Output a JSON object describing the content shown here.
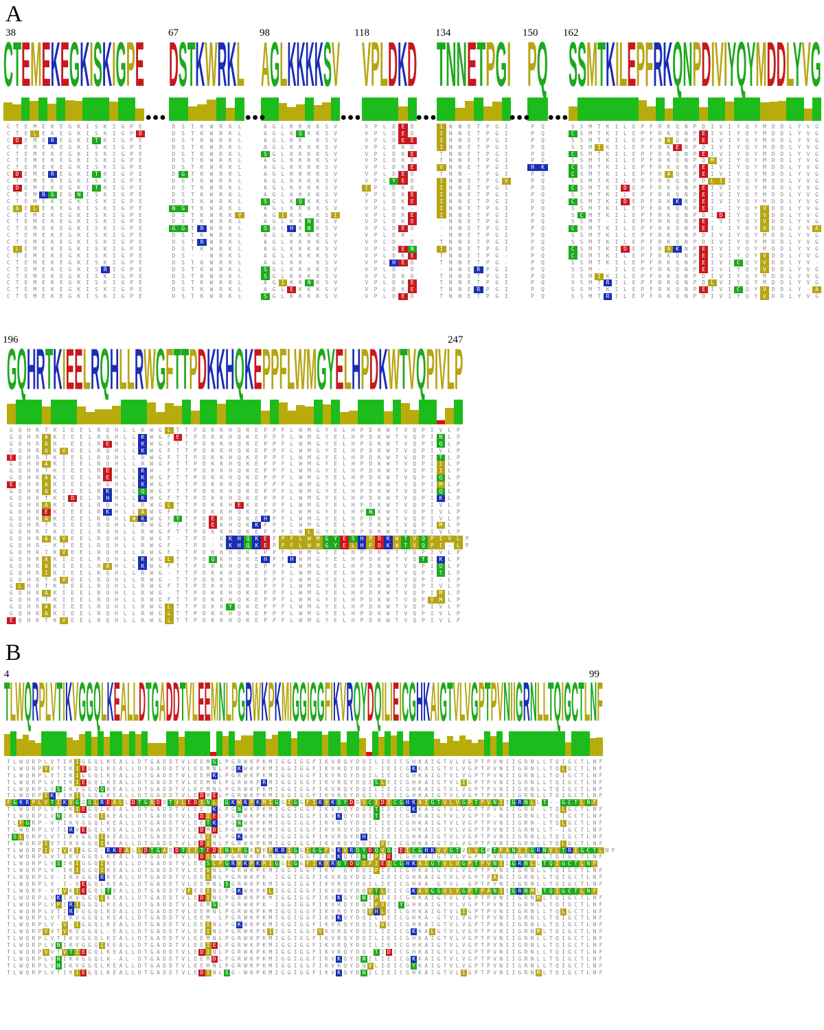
{
  "panels": [
    {
      "letter": "A"
    },
    {
      "letter": "B"
    }
  ],
  "panelA": {
    "blocks": [
      {
        "start": "38",
        "consensus": "CTEMEKEGKISKIGPE"
      },
      {
        "start": "67",
        "consensus": "DSTKWRKL"
      },
      {
        "start": "98",
        "consensus": "AGLKKKKSV"
      },
      {
        "start": "118",
        "consensus": "VPLDKD"
      },
      {
        "start": "134",
        "consensus": "TNNETPGI"
      },
      {
        "start": "150",
        "consensus": "PQ"
      },
      {
        "start": "162",
        "consensus": "SSMTKILEPFRKQNPDIVIYQYMDDLYVG"
      }
    ],
    "row2": {
      "start": "196",
      "end": "247",
      "consensus": "GQHRTKIEELRQHLLRWGFTTPDKKHQKEPPFLWMGYELHPDKWTVQPIVLP"
    },
    "ellipsis": "•••",
    "alignment_rows": [
      "CTEMEKEGKISKIGPE DSTKWRKL AGLKKKKSV VPLDED INNETPGI PQ SSMTKILEPFRKQNPDIVIYQYMDDLYVG",
      "CTELEKEGKISKIGPD DSTKWRKL AGLKQKKSV VPLDED INNETPGI PQ CSMTKILEPFRKQNPEIVIYQYMDDLYVG",
      "CDEMEREGKITKIGPE DSTKWRKL AGLKK-KSV VPLDEE INNETPGI PQ SSMTKILEPFRAQNPEIVIYQYMDDLYVG",
      "CTEMEKEGKISKIGPE DSTKWRKL AGLKKKKSV VPLDKD INNETPGI PQ SSMIKILEPFRKENPDIVIYQYMDDLYVG",
      "CTEMEKEGKISKIGPE DSTKWRKL SGLKKKKSV VPLDKE TNNETPGI PQ CSMTKILEPFRKQNPEIVIYQYMDDLYVG",
      "CTEMEKEGKISKIGPE DSTKWRKL AGLKKKKSV VPLDKD TNNETPGI PQ SSMTKILEPFRKQNPDMVIYQYMDDLYVG",
      "CTEMEKEGKISKIGPE DSTKWRKL AGLKKKKSV VPLDKE VNNETPGI HK CSMTKILEPFRKQNPEIVIYQYMDDLYVG",
      "CDEMEREGKITKIGPE DGTKWRKL AGLKKKKSV VPLDED TNN-TPGI PQ CSMTKILEPFRAQNPEIVIYQYMDDLYVG",
      "CTEMEKEGKISKIGPE DSTKWRKL AGLKKKKSV VPLYED INNETPGV PQ SSMTKILEPFRKQNPDLIIYQYMDDLYVG",
      "CDEMEKEGKITKIGPE DSTKWRKL AGLKKKKSV IPLDKD INNETPGI PQ CSMTKIDEPFRKQNPEIVIYQYMDDLYVG",
      "CTEMRGEGNISKIGPE DSTKWRKL AGLKKKKSV VPLDKE INNETPGI PQ SSMTKILEPFRKQNPEIVIYQYMDDLYVG",
      "CTEMEKEGKISKIGPE DSTKWRKL SGLKQKKSV VPLDKE INNETPGI PQ CSMTKIDEPFRKKNPEIVIYQYMDDLYVG",
      "CAELEKEGKISKIGPE NGTKWRKL AGLKKKKSV VPLDK- INNETPGI PQ SSMTKILEPFRKQNPEI-IYQYVDDLYVG",
      "CTEMEKEGKISKIGPE DSTKWRKV AGIKK-KSI VPLDKE INNETPGI PQ SCMTKILEPFRKQNPDIDIYQYVDDLYVG",
      "CTEMEKEGKISKIGPE DSTKWRKL AGLKKNKSV VPLDKE -NNETPGI PQ SSMT-ILEPFRKQNPE-VIYQYVDDLYVG",
      "CTEMEKEGKISKIGPE GGTRWRKL SGLHKNKSV VPLDED -NNETPGI PQ CSMTKILEPFRKQNPEI-IYQYVDDLYVA",
      "CTEMEKEGKISKIGPE DSTKWRKL AGLKKKKSV VPLDK- -NNETPGI PQ SSMTKILEPFRKQNPDIVIYQYMDDLYVG",
      "CTEMEKEGKISKIGPE DSTRWRKL AGLKKKKSV VPLD-D TNNETPGI PQ SSMTKILEPFRKQNPDIVIYQYMDDLYVG",
      "CLEMEKEGKISKIGPE DSTKWRKL AGLKKKKSV VPLDEN INNETPGI PQ CSMTKIDEPFRAKNPEIVIYQYMDDLYVG",
      "CTEMEKEGKISKIGPE DS--WRKL AGLKKKKSV VPLDKE TNNETPG- PQ CSMTKILEPFRKQNPEIVIYQYVDDLYVG",
      "CTEMEKEGKISKIGPE DSTKWRKL AGLKK-KSV VPLHED TNNETPG- PQ SSMTKILEPFRKQNPEIVICQYVDDLYV-",
      "CTEMEKEGKISRIGPE DSTKWRKL SGLKKKKSV VPLD-D -NNERPGI PQ SSM--ILEPFRKQNPEIVIYQYVDDLYVG",
      "CTEMEKEGKISKIGPE DSTKWRKL SGLKKKKSV VPLDKD TNNETPGI PQ SSMIKILEPFRKQNPDIVIYQYMDDLYVG",
      "CTEMEKEGKISKIGPE DSTKWRKL AGIKKNKSV VPLDKE TNNETPGI PQ SSMTRILEPFRKQNPDLVIYQYMDDLYVG",
      "CTEMEKEGKISKIGPE DSTKWRKL AGLEKKKSV VPLDKE TNNERPGI PQ SSMTKILEPFRKQNPEIVICQYVDDLY-A",
      "CTEMEKEGKISKIGPE DSTKWRKL SGLKKKKSV VPLDED TNNETPGI PQ SSMTRILEPFRKQNPDIVIYQYVDDLYVG"
    ]
  },
  "panelB": {
    "start": "4",
    "end": "99",
    "consensus": "TLWQRPLVTIKVGGQLKEALLDTGADDTVLEEMNLPGRWKPKMIGGIGGFIKVRQYDQILIEICGHKAIGTVLVGPTPVNIIGRNLLTQIGCTLNF",
    "alignment_rows": [
      "TLWQRPLVTIKIGGQLKEALLDTGADDTVLEEMSLPGRWKPKMIGGIGGFIKVRQYDQILIEICGHKAIGTVLVGPTPVNIIGRNLLTQIGCTLNF",
      "TLWQRPVVTIKIEGQLKEALLDTGADDTVLEEMNLPGKWKPKMIGGIGGFIKVRQYDQI-IEICGKKAIGTVLVGPTPVNIIGRNLLTQLGCTLNF",
      "TLWQRPLVTIKIGGQLKEALLDTGADDTVLEEMKLPGRWKPKMIGGIGGFIKVRQYDQILIEICGHKAIGTVLVGPTPVNIIGRNLLTQIGCTLNF",
      "TLWQRPLVTIKIEGQLKEALLDTGADDTVLEEMNLPGRWKPRMIGGIGGFIKVRQYDQISLEICGHKAIGTVLIGPTPVNIIGRNLLTQIGCTLNF",
      "TLWQRPLVSIKVGGQQKEALLDTGADDTVLEEMNLPGRWKPKMIGGIGGFIKVRQYDQILIEICGHKAIGTVLVGPTPVNIIGRNLLTQIGCTLNF",
      "TLWQRPIKTIKIGGQLKEALLDTGADDTVLEDMELPGRWKPKMIGGIGGFIKVRQYDQILIEICGHKAIGTVLVGPTPVNIIGRNLLTQIGCTLNF",
      "FGKRPLVTIKVGGQLREALLDTGADDTVLEDINL-GKWKPKMIGGIGGFIKVKQYDDVCIDICGHKAIGTVLVGPTPVNIIGRNLLT--GCTLNF",
      "TLWQRPLVTIKIEGQLKEALLDTGADDTVLEE-KLPGNWKPKMIGGIGGFIKVRQYDQITIEICGKKAIGTVLVGPTPVNIIGRN-LTQLGCTLNF",
      "TLWQRPLVNIKVGGQIKEALLDTGADDTVLEDIELPGRWKPKMIGGIGGFIKVKQYDQITIEICGHKAIGTVLVGPTP-NIIGRNLLTQIGCTLNF",
      "TLFGRP-VTIKVGGQLKEALLDTGADDTVLEETKLPGNWKPKMIGGIGGFIKVRQYDQILIEICGHKAIGTVLVGPTPVNIIGRN-LTQLGCTLNF",
      "TLWQRPLVTIRVEGQLKEALLDTGADDTVLEDMDLPGRWKPKMIGGIGGFIKVRQYDQILIEICGHKAIGTVLVGPTPVNIIGRNLLT-IGCTLNF",
      "TSLQRPLVTIKVGGQIKEALLDTGADDTVLEEINLPGKWKPKMIGGIGGFIKVRQYDHILIEICGHKAIGTVLVGPTPVNIIGRNLLTQIGCTLNF",
      "TLWQRPIVTIKVGGQIKEALLDTGADDTVLEDINLPGRWKPKMIGGIGGFIKVRQYDQILVEICGHKAIGTVLVGPTPVNIIGRNLLTQLGCTLNF",
      "TLWQRPIVTVKIGGQ-RKEALLDTGADDTIITEDINLPGKWKPKRIGGIGGFVKVRQYDQVQIEICGHKVVGTVLVGPTPANIIGRNVLTRIGCTLNF",
      "TLWQRPLVTIKVGGQLKEALLDTGADDTVLEDINLPGRWKPKMIGGIGGFIKVKQYDNIPIDICGHKAIGTVLVGPTPVNIIGRNLLTQIGCTLNF",
      "TLWQRPLVSIKIGGQIKEALLDTGADDTVLEESLPGRWKPKMIGGIGGFIKVRQYDQIPIEICGHKAIGTVLVGPTPVNIIGRNLLTQIGCTLNF",
      "TLWQRPLV-IKIGGQIKEALLDTGADDTVLEEVNLPGRWKPKMIGGIGGFIKV-QYDQIPIEICGHKAIGTVLVGPTPVNIIGRNLLTQIGCTLNF",
      "TLWQRPLV-IKVGGQRKEALLDTGADDTVLEEINLPGRWKPK-IGGIGGFIKVRQYDQI-IEICGHKAIGTVLVGPTPANIIGRNLLTQIGCTLNF",
      "TLWQRPLV-I-VEGQLKEALLDTGADDTVLEEMNLSGRWKPKMIGGIGGFIKVRQYDQILIEICGHKA-GTVL-GPTPVNIIGRNLLTQIGCTLNF",
      "TLWQRP-VTVKIEGQLTEALLDTGADDTVFEEINLPGKWKPKLIGGIGGFIKVRQYDQVTLEICGKAVGSVLVGPTPANIIGRNMLTQIGCTLNF",
      "TLWQRPLVKIKVGGQIKEALLDTGADDTVLEDINLPGRWKPKMIGGIGGFIKVKQYDNIPIEICGHKAIGTVLVGPTPVNIIGRNMLTQIGCTLNF",
      "TLWQRPLVPIRIGGQLKEALLDTGADDTVLEEMSLPGRWKPK-IGGIGGFIKVRQYDQIPVEIYGHKAIGTVLVGPTPVNIIGRNLLTQIGCTLNF",
      "TLWQRPLVTIRVGGQLKEALLDTGADDTVLEEMNLPGRWKPKMIGGIGGFIKVRQYDQVHLEICGHKAIGTVLIGPTPVNIIGRNLLTQLGCTLNF",
      "TLWQRPLVTIKVGGQLKEALLDTGADDTVLEEM-LPGRWKPKMIGGIGGFIKVKQYDQILIEICGHKA-GTVLVGPTPVNIIGRNLLTQIGCTLNF",
      "TLWQRPLV-V-IGGQLKEALLDTGADDTVLEEINLPGKWKPKMIGGIGGFIKVRQYDQILVEICGHKAIGTVLVGPTPVNIIGRNLLTQIGCTLNF",
      "TLWQRPVVTVKVGGQL-EALLDTGADDTVLEEINLPGRWKPKIIGGIGGFVKVRQYDQILIEICGKKALGTVLVGPTPVNIIGRNMLTQIGCTLNF",
      "TLWQRPLVTIKVGGQLKEALLDTGADDTVLEEMNLPGRWKPKMIGGIGGFIKVRQYDQILIEICGHKAIGTVLVGPTPVNIIGRNLLTQIGCTLNF",
      "TLWQRPLVNIKVGGQIKEALLDTGADDTVLEEIELPGRWKPKMIGGIGGFIKVRQYDQILIEICGHKAIGTVLVGPTPVNIIGRNLLTQIGCTLNF",
      "TLWQRPVVTVTIEGQLKEALLDTGADDTVLEDINLPGRWKPKMIGGIGGFIKVRQYDQ-TIDICGHKAIGTVLVGPTPVNIIGRNLLTQIGCTLNF",
      "TLWQRPLVNIKVGGQLK-AL-DTGADDTVLEEMDLPGRWKPKMIGGIGGFIKVKQYDNILIEICGKKAIGTVLVGPTPVNIIGRNLLTQIGCTLNF",
      "TLWQRPLVNIKVGGQLKEALLDTGADDTVLEEMNLPGRWKPKMIGGIGGFIKVRQYDQVLIEICGYKAIGTVLVGPTPVNIIGRNLLTQIGCTLNF",
      "TLWQRPLVTIKIEGQLKEALLDTGADDTVLEDINLSG-WKPKMIGGIGGFIKVKQYDNILIEICGHKAIGTVLIGPTPVNIIGRNMLTQIGCTLNF"
    ]
  },
  "colors": {
    "green": "#1ea81e",
    "olive": "#b5a514",
    "blue": "#1a2db4",
    "red": "#c8181e",
    "bar_green": "#1cbc1c",
    "bar_olive": "#b8ac0c",
    "bar_red": "#e01010"
  }
}
